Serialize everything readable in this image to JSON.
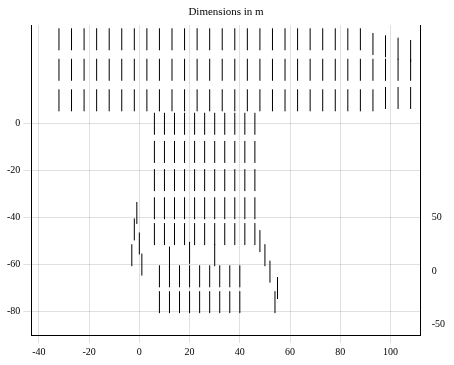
{
  "chart_data": {
    "type": "scatter",
    "title": "Dimensions in m",
    "color": "#000000",
    "marker": "vline",
    "grid": true,
    "x": [
      -32,
      -27,
      -22,
      -17,
      -12,
      -7,
      -2,
      3,
      8,
      13,
      18,
      23,
      28,
      33,
      38,
      43,
      48,
      53,
      58,
      63,
      68,
      73,
      78,
      83,
      88,
      93,
      98,
      103,
      108,
      -32,
      -27,
      -22,
      -17,
      -12,
      -7,
      -2,
      3,
      8,
      13,
      18,
      23,
      28,
      33,
      38,
      43,
      48,
      53,
      58,
      63,
      68,
      73,
      78,
      83,
      88,
      93,
      98,
      103,
      108,
      -32,
      -27,
      -22,
      -17,
      -12,
      -7,
      -2,
      3,
      8,
      13,
      18,
      23,
      28,
      33,
      38,
      43,
      48,
      53,
      58,
      63,
      68,
      73,
      78,
      83,
      88,
      93,
      98,
      103,
      108,
      6,
      10,
      14,
      18,
      22,
      26,
      30,
      34,
      38,
      42,
      46,
      6,
      10,
      14,
      18,
      22,
      26,
      30,
      34,
      38,
      42,
      46,
      6,
      10,
      14,
      18,
      22,
      26,
      30,
      34,
      38,
      42,
      46,
      6,
      10,
      14,
      18,
      22,
      26,
      30,
      34,
      38,
      42,
      46,
      6,
      10,
      14,
      18,
      22,
      26,
      30,
      34,
      38,
      42,
      46,
      -1,
      -2,
      0,
      -3,
      1,
      48,
      50,
      52,
      55,
      54,
      12,
      20,
      30,
      8,
      12,
      16,
      20,
      24,
      28,
      32,
      36,
      40,
      8,
      12,
      16,
      20,
      24,
      28,
      32,
      36,
      40
    ],
    "values": [
      36,
      36,
      36,
      36,
      36,
      36,
      36,
      36,
      36,
      36,
      36,
      36,
      36,
      36,
      36,
      36,
      36,
      36,
      36,
      36,
      36,
      36,
      36,
      36,
      36,
      34,
      33,
      32,
      31,
      23,
      23,
      23,
      23,
      23,
      23,
      23,
      23,
      23,
      23,
      23,
      23,
      23,
      23,
      23,
      23,
      23,
      23,
      23,
      23,
      23,
      23,
      23,
      23,
      23,
      23,
      23,
      23,
      23,
      10,
      10,
      10,
      10,
      10,
      10,
      10,
      10,
      10,
      10,
      10,
      10,
      10,
      10,
      10,
      10,
      10,
      10,
      10,
      10,
      10,
      10,
      10,
      10,
      10,
      10,
      11,
      11,
      11,
      0,
      0,
      0,
      0,
      0,
      0,
      0,
      0,
      0,
      0,
      0,
      -12,
      -12,
      -12,
      -12,
      -12,
      -12,
      -12,
      -12,
      -12,
      -12,
      -12,
      -24,
      -24,
      -24,
      -24,
      -24,
      -24,
      -24,
      -24,
      -24,
      -24,
      -24,
      -36,
      -36,
      -36,
      -36,
      -36,
      -36,
      -36,
      -36,
      -36,
      -36,
      -36,
      -47,
      -47,
      -47,
      -47,
      -47,
      -47,
      -47,
      -47,
      -47,
      -47,
      -47,
      -38,
      -45,
      -51,
      -56,
      -60,
      -50,
      -56,
      -63,
      -70,
      -76,
      -57,
      -55,
      -56,
      -65,
      -65,
      -65,
      -65,
      -65,
      -65,
      -65,
      -65,
      -65,
      -76,
      -76,
      -76,
      -76,
      -76,
      -76,
      -76,
      -76,
      -76
    ],
    "xlim": [
      -43,
      112
    ],
    "xticks": [
      -40,
      -20,
      0,
      20,
      40,
      60,
      80,
      100
    ],
    "ylim": [
      -90,
      42
    ],
    "yticks": [
      -80,
      -60,
      -40,
      -20,
      0
    ],
    "y2lim": [
      -60,
      230
    ],
    "y2ticks": [
      -50,
      0,
      50
    ]
  }
}
